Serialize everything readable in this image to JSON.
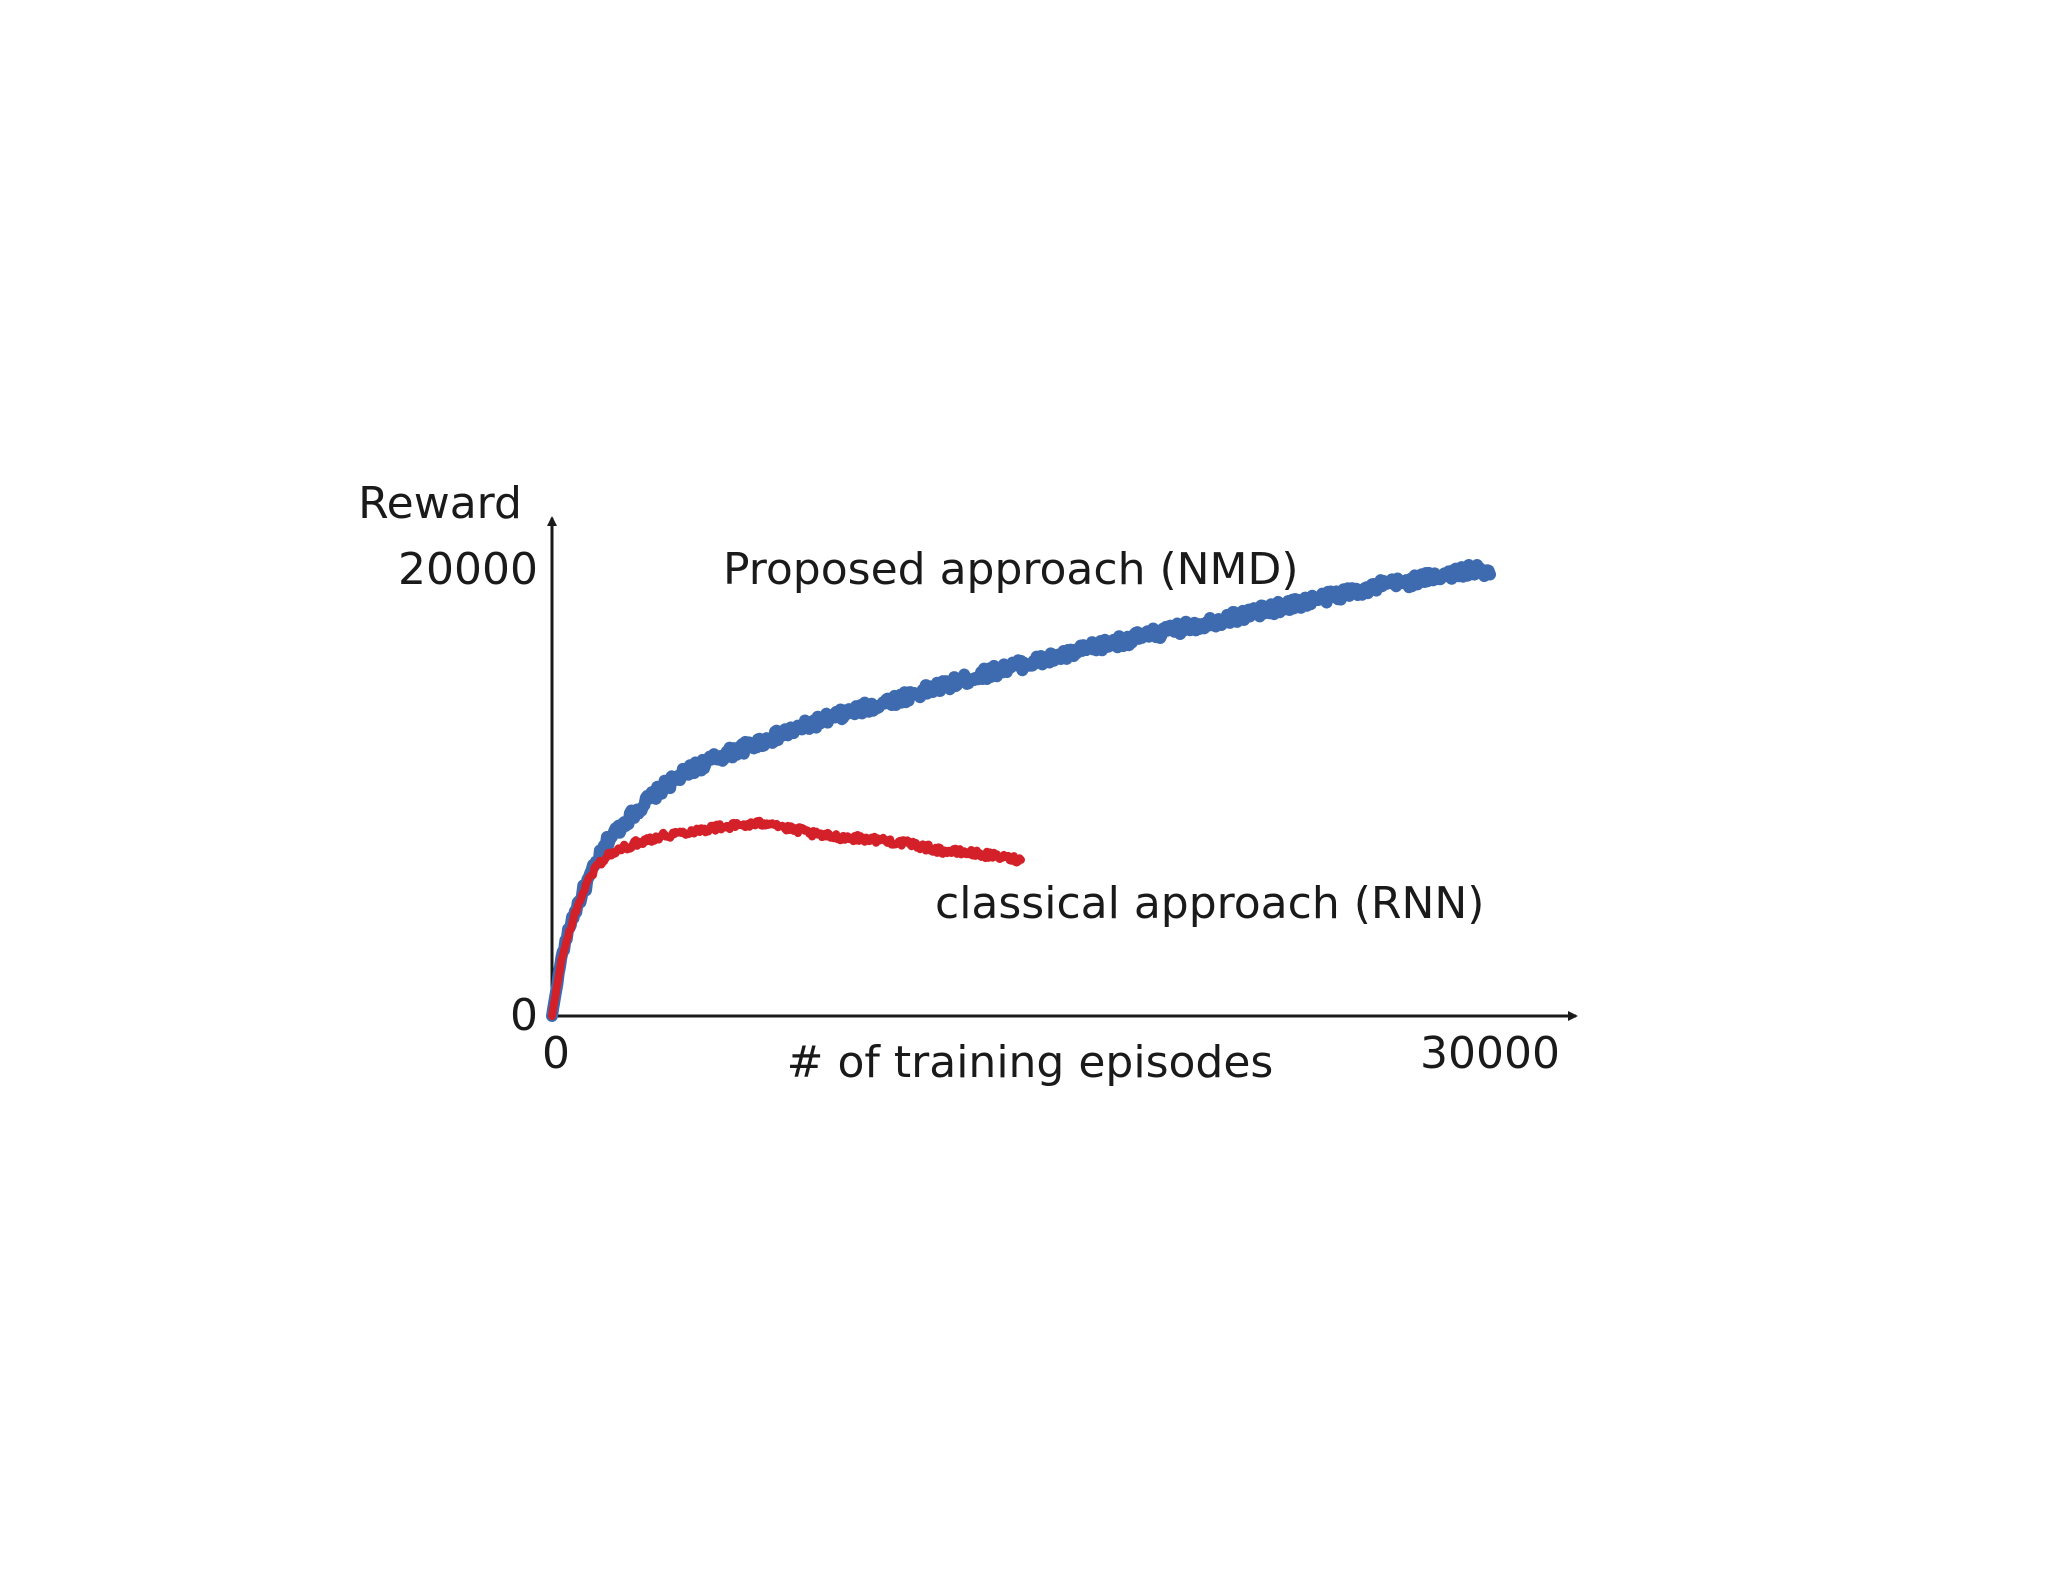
{
  "chart_data": {
    "type": "line",
    "title": "",
    "xlabel": "# of training episodes",
    "ylabel": "Reward",
    "xlim": [
      0,
      30000
    ],
    "ylim": [
      0,
      20000
    ],
    "x_ticks": [
      "0",
      "30000"
    ],
    "y_ticks": [
      "0",
      "20000"
    ],
    "grid": false,
    "legend": "inline labels",
    "series": [
      {
        "name": "Proposed approach (NMD)",
        "color": "#3e6bb0",
        "x": [
          0,
          300,
          600,
          1000,
          1400,
          1800,
          2400,
          3000,
          3600,
          4500,
          5500,
          6500,
          7500,
          8500,
          9500,
          10500,
          11500,
          12500,
          13500,
          14500,
          15500,
          16500,
          17500,
          18500,
          19500,
          20500,
          21500,
          22500,
          23500,
          24500,
          25500,
          26500,
          27500,
          28500,
          29500,
          30000
        ],
        "y": [
          0,
          2600,
          4200,
          5600,
          6800,
          7900,
          8800,
          9600,
          10300,
          11100,
          11700,
          12200,
          12700,
          13200,
          13600,
          14000,
          14400,
          14800,
          15200,
          15600,
          15900,
          16200,
          16600,
          16900,
          17200,
          17500,
          17800,
          18100,
          18400,
          18700,
          19000,
          19300,
          19500,
          19800,
          20000,
          19800
        ]
      },
      {
        "name": "classical approach (RNN)",
        "color": "#d42028",
        "x": [
          0,
          300,
          600,
          1000,
          1400,
          1800,
          2400,
          3000,
          3600,
          4500,
          5500,
          6500,
          7000,
          7500,
          8000,
          8500,
          9500,
          10500,
          11500,
          12500,
          13500,
          14500,
          15000
        ],
        "y": [
          0,
          2500,
          4000,
          5600,
          6700,
          7200,
          7600,
          7900,
          8100,
          8300,
          8500,
          8600,
          8700,
          8400,
          8300,
          8100,
          8000,
          7900,
          7700,
          7400,
          7300,
          7100,
          7000
        ]
      }
    ]
  }
}
